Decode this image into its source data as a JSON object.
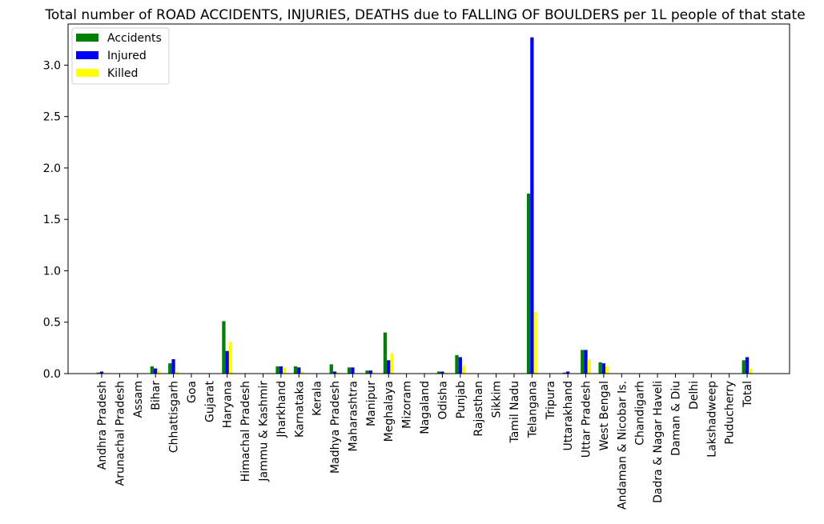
{
  "chart_data": {
    "type": "bar",
    "title": "Total number of ROAD ACCIDENTS, INJURIES, DEATHS due to FALLING OF BOULDERS per 1L people of that state",
    "xlabel": "",
    "ylabel": "",
    "ylim": [
      0,
      3.4
    ],
    "yticks": [
      "0.0",
      "0.5",
      "1.0",
      "1.5",
      "2.0",
      "2.5",
      "3.0"
    ],
    "grid": false,
    "legend_position": "top-left",
    "categories": [
      "Andhra Pradesh",
      "Arunachal Pradesh",
      "Assam",
      "Bihar",
      "Chhattisgarh",
      "Goa",
      "Gujarat",
      "Haryana",
      "Himachal Pradesh",
      "Jammu & Kashmir",
      "Jharkhand",
      "Karnataka",
      "Kerala",
      "Madhya Pradesh",
      "Maharashtra",
      "Manipur",
      "Meghalaya",
      "Mizoram",
      "Nagaland",
      "Odisha",
      "Punjab",
      "Rajasthan",
      "Sikkim",
      "Tamil Nadu",
      "Telangana",
      "Tripura",
      "Uttarakhand",
      "Uttar Pradesh",
      "West Bengal",
      "Andaman & Nicobar Is.",
      "Chandigarh",
      "Dadra & Nagar Haveli",
      "Daman & Diu",
      "Delhi",
      "Lakshadweep",
      "Puducherry",
      "Total"
    ],
    "series": [
      {
        "name": "Accidents",
        "color": "#008000",
        "values": [
          0.01,
          0,
          0,
          0.07,
          0.1,
          0,
          0,
          0.51,
          0,
          0,
          0.07,
          0.07,
          0,
          0.09,
          0.06,
          0.03,
          0.4,
          0,
          0,
          0.02,
          0.18,
          0,
          0,
          0,
          1.75,
          0,
          0.01,
          0.23,
          0.11,
          0,
          0,
          0,
          0,
          0,
          0,
          0,
          0.13
        ]
      },
      {
        "name": "Injured",
        "color": "#0000ff",
        "values": [
          0.02,
          0,
          0,
          0.05,
          0.14,
          0,
          0,
          0.22,
          0,
          0,
          0.07,
          0.06,
          0,
          0.02,
          0.06,
          0.03,
          0.13,
          0,
          0,
          0.02,
          0.16,
          0,
          0,
          0,
          3.27,
          0,
          0.02,
          0.23,
          0.1,
          0,
          0,
          0,
          0,
          0,
          0,
          0,
          0.16
        ]
      },
      {
        "name": "Killed",
        "color": "#ffff00",
        "values": [
          0.005,
          0,
          0,
          0.03,
          0.02,
          0,
          0,
          0.31,
          0,
          0,
          0.06,
          0.02,
          0,
          0.01,
          0,
          0.01,
          0.2,
          0,
          0,
          0.01,
          0.08,
          0,
          0,
          0,
          0.6,
          0,
          0,
          0.14,
          0.07,
          0,
          0,
          0,
          0,
          0,
          0,
          0,
          0.05
        ]
      }
    ]
  }
}
